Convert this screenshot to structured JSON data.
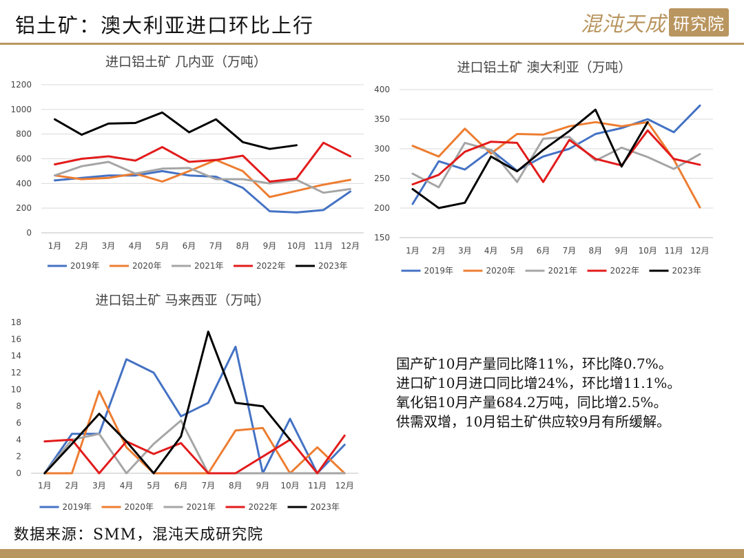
{
  "header": {
    "title": "铝土矿：澳大利亚进口环比上行",
    "logo_text": "混沌天成",
    "logo_seal": "研究院",
    "accent_color": "#b9955f"
  },
  "series_style": [
    {
      "name": "2019年",
      "color": "#4472c4"
    },
    {
      "name": "2020年",
      "color": "#ed7d31"
    },
    {
      "name": "2021年",
      "color": "#a5a5a5"
    },
    {
      "name": "2022年",
      "color": "#e21b1b"
    },
    {
      "name": "2023年",
      "color": "#000000"
    }
  ],
  "chart_data": [
    {
      "type": "line",
      "title": "进口铝土矿 几内亚（万吨）",
      "categories": [
        "1月",
        "2月",
        "3月",
        "4月",
        "5月",
        "6月",
        "7月",
        "8月",
        "9月",
        "10月",
        "11月",
        "12月"
      ],
      "ylim": [
        0,
        1200
      ],
      "yticks": [
        0,
        200,
        400,
        600,
        800,
        1000,
        1200
      ],
      "grid": true,
      "legend": "bottom",
      "series": [
        {
          "name": "2019年",
          "values": [
            425,
            445,
            465,
            465,
            500,
            465,
            455,
            365,
            175,
            165,
            185,
            335
          ]
        },
        {
          "name": "2020年",
          "values": [
            465,
            435,
            445,
            480,
            415,
            500,
            590,
            500,
            290,
            340,
            390,
            430
          ]
        },
        {
          "name": "2021年",
          "values": [
            465,
            540,
            575,
            480,
            520,
            525,
            435,
            435,
            400,
            430,
            325,
            355
          ]
        },
        {
          "name": "2022年",
          "values": [
            555,
            600,
            620,
            585,
            695,
            575,
            590,
            625,
            415,
            440,
            730,
            620
          ]
        },
        {
          "name": "2023年",
          "values": [
            920,
            795,
            885,
            890,
            975,
            815,
            920,
            735,
            680,
            710,
            null,
            null
          ]
        }
      ]
    },
    {
      "type": "line",
      "title": "进口铝土矿 澳大利亚（万吨）",
      "categories": [
        "1月",
        "2月",
        "3月",
        "4月",
        "5月",
        "6月",
        "7月",
        "8月",
        "9月",
        "10月",
        "11月",
        "12月"
      ],
      "ylim": [
        150,
        400
      ],
      "yticks": [
        150,
        200,
        250,
        300,
        350,
        400
      ],
      "grid": true,
      "legend": "bottom",
      "series": [
        {
          "name": "2019年",
          "values": [
            207,
            279,
            265,
            298,
            263,
            287,
            300,
            325,
            335,
            350,
            328,
            373
          ]
        },
        {
          "name": "2020年",
          "values": [
            305,
            287,
            334,
            292,
            325,
            324,
            338,
            345,
            338,
            345,
            282,
            201
          ]
        },
        {
          "name": "2021年",
          "values": [
            258,
            235,
            310,
            298,
            244,
            317,
            320,
            280,
            302,
            286,
            266,
            291
          ]
        },
        {
          "name": "2022年",
          "values": [
            240,
            256,
            295,
            312,
            310,
            244,
            315,
            283,
            272,
            331,
            283,
            273
          ]
        },
        {
          "name": "2023年",
          "values": [
            232,
            200,
            209,
            287,
            262,
            298,
            330,
            366,
            270,
            345,
            null,
            null
          ]
        }
      ]
    },
    {
      "type": "line",
      "title": "进口铝土矿 马来西亚（万吨）",
      "categories": [
        "1月",
        "2月",
        "3月",
        "4月",
        "5月",
        "6月",
        "7月",
        "8月",
        "9月",
        "10月",
        "11月",
        "12月"
      ],
      "ylim": [
        0,
        18
      ],
      "yticks": [
        0,
        2,
        4,
        6,
        8,
        10,
        12,
        14,
        16,
        18
      ],
      "grid": false,
      "legend": "bottom",
      "series": [
        {
          "name": "2019年",
          "values": [
            0,
            4.7,
            4.7,
            13.6,
            12.0,
            6.8,
            8.4,
            15.1,
            0,
            6.5,
            0,
            3.4
          ]
        },
        {
          "name": "2020年",
          "values": [
            0,
            0,
            9.8,
            3.1,
            0,
            0,
            0,
            5.1,
            5.4,
            0,
            3.1,
            0
          ]
        },
        {
          "name": "2021年",
          "values": [
            0,
            4.0,
            4.7,
            0,
            3.5,
            6.3,
            0,
            0,
            0,
            0,
            0,
            0
          ]
        },
        {
          "name": "2022年",
          "values": [
            3.8,
            4.0,
            0,
            3.8,
            2.3,
            3.6,
            0,
            0,
            2.0,
            4.0,
            0,
            4.5
          ]
        },
        {
          "name": "2023年",
          "values": [
            0,
            3.5,
            7.1,
            3.8,
            0,
            4.4,
            16.9,
            8.4,
            8.0,
            4.0,
            null,
            null
          ]
        }
      ]
    }
  ],
  "summary": [
    "国产矿10月产量同比降11%，环比降0.7%。",
    "进口矿10月进口同比增24%，环比增11.1%。",
    "氧化铝10月产量684.2万吨，同比增2.5%。",
    "供需双增，10月铝土矿供应较9月有所缓解。"
  ],
  "source": "数据来源：SMM，混沌天成研究院"
}
